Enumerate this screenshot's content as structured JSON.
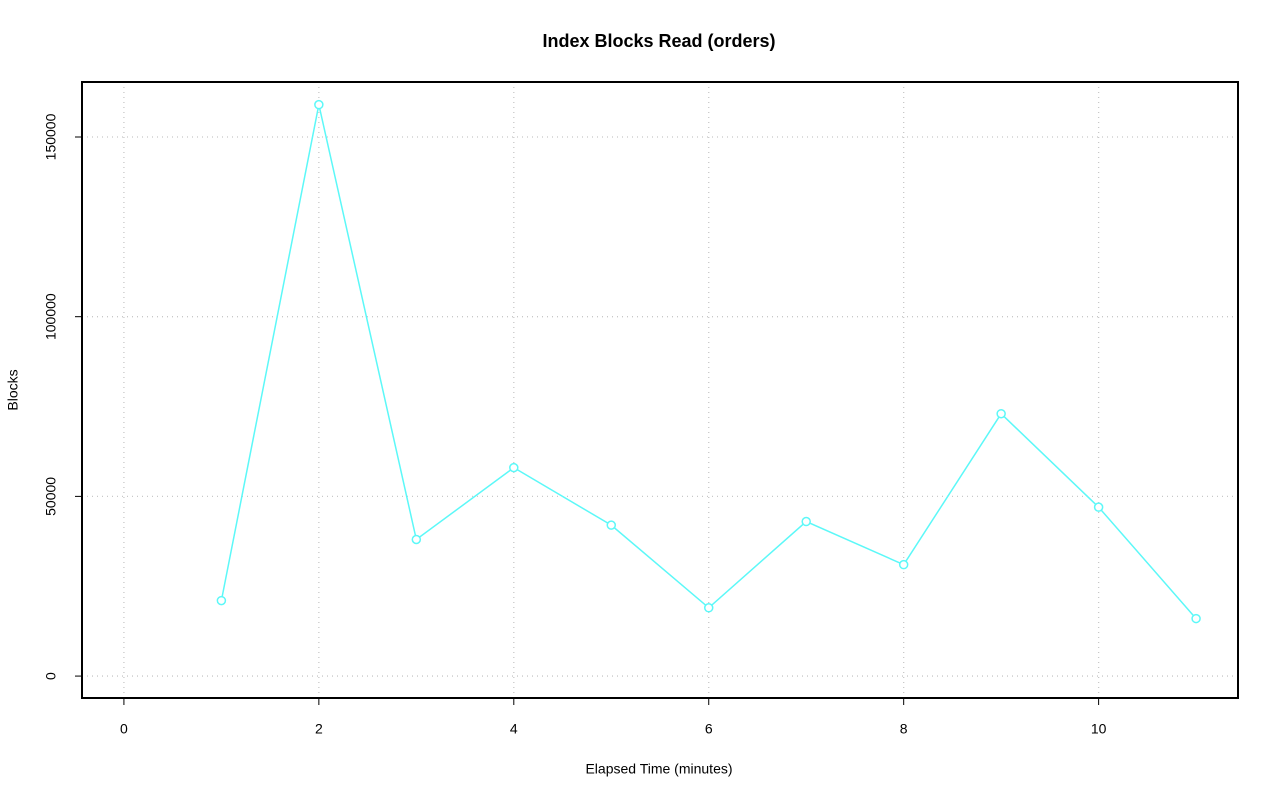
{
  "chart_data": {
    "type": "line",
    "title": "Index Blocks Read (orders)",
    "x_label": "Elapsed Time (minutes)",
    "y_label": "Blocks",
    "x": [
      1,
      2,
      3,
      4,
      5,
      6,
      7,
      8,
      9,
      10,
      11
    ],
    "series": [
      {
        "name": "orders",
        "color": "#5cf8f8",
        "values": [
          21000,
          159000,
          38000,
          58000,
          42000,
          19000,
          43000,
          31000,
          73000,
          47000,
          16000
        ]
      }
    ],
    "xlim": [
      -0.43,
      11.43
    ],
    "ylim": [
      -6100,
      165300
    ],
    "xticks": [
      0,
      2,
      4,
      6,
      8,
      10
    ],
    "yticks": [
      0,
      50000,
      100000,
      150000
    ],
    "grid": true
  }
}
